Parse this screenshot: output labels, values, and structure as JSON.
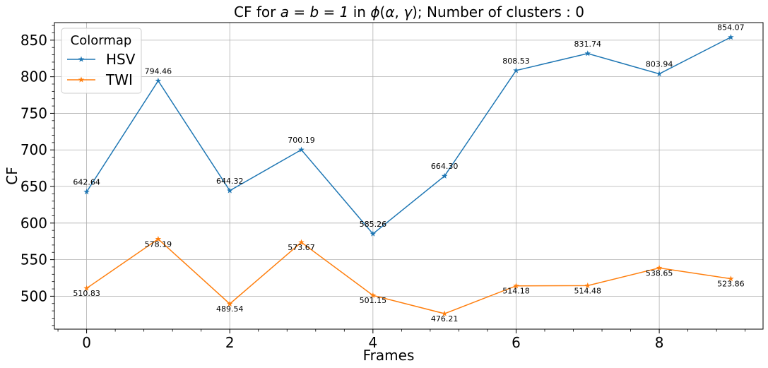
{
  "chart_data": {
    "type": "line",
    "title": "CF for $a = b = 1$ in $\\phi(\\alpha, \\gamma)$; Number of clusters : 0",
    "title_parts": {
      "prefix": "CF for ",
      "math1": "a = b = 1",
      "mid": " in ",
      "phi": "ϕ",
      "args_open": "(",
      "alpha": "α",
      "comma": ", ",
      "gamma": "γ",
      "args_close": ")",
      "suffix": "; Number of clusters : 0"
    },
    "xlabel": "Frames",
    "ylabel": "CF",
    "x": [
      0,
      1,
      2,
      3,
      4,
      5,
      6,
      7,
      8,
      9
    ],
    "xlim": [
      -0.45,
      9.45
    ],
    "ylim": [
      455,
      874
    ],
    "xticks": [
      0,
      2,
      4,
      6,
      8
    ],
    "yticks": [
      500,
      550,
      600,
      650,
      700,
      750,
      800,
      850
    ],
    "grid": true,
    "legend": {
      "title": "Colormap",
      "placement": "top-left"
    },
    "series": [
      {
        "name": "HSV",
        "color": "#1f77b4",
        "marker": "star",
        "values": [
          642.64,
          794.46,
          644.32,
          700.19,
          585.26,
          664.3,
          808.53,
          831.74,
          803.94,
          854.07
        ],
        "labels": [
          "642.64",
          "794.46",
          "644.32",
          "700.19",
          "585.26",
          "664.30",
          "808.53",
          "831.74",
          "803.94",
          "854.07"
        ]
      },
      {
        "name": "TWI",
        "color": "#ff7f0e",
        "marker": "star",
        "values": [
          510.83,
          578.19,
          489.54,
          573.67,
          501.15,
          476.21,
          514.18,
          514.48,
          538.65,
          523.86
        ],
        "labels": [
          "510.83",
          "578.19",
          "489.54",
          "573.67",
          "501.15",
          "476.21",
          "514.18",
          "514.48",
          "538.65",
          "523.86"
        ]
      }
    ]
  }
}
